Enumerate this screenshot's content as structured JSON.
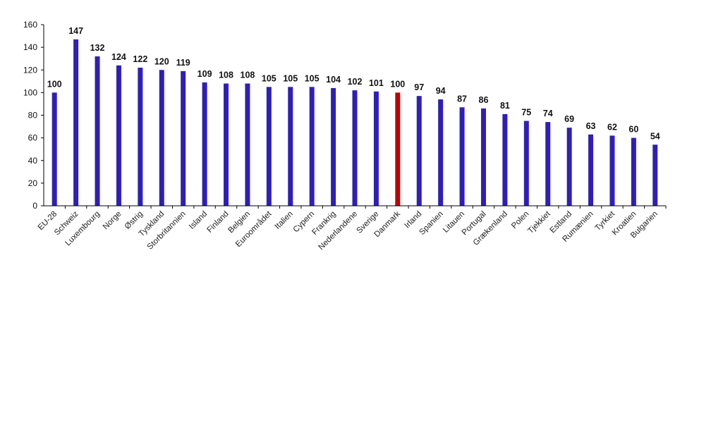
{
  "chart_data": {
    "type": "bar",
    "title": "",
    "xlabel": "",
    "ylabel": "",
    "ylim": [
      0,
      160
    ],
    "yticks": [
      0,
      20,
      40,
      60,
      80,
      100,
      120,
      140,
      160
    ],
    "grid": false,
    "legend": "none",
    "categories": [
      "EU-28",
      "Schweiz",
      "Luxembourg",
      "Norge",
      "Østrig",
      "Tyskland",
      "Storbritannien",
      "Island",
      "Finland",
      "Belgien",
      "Euroområdet",
      "Italien",
      "Cypern",
      "Frankrig",
      "Nederlandene",
      "Sverige",
      "Danmark",
      "Irland",
      "Spanien",
      "Litauen",
      "Portugal",
      "Grækenland",
      "Polen",
      "Tjekkiet",
      "Estland",
      "Rumænien",
      "Tyrkiet",
      "Kroatien",
      "Bulgarien"
    ],
    "values": [
      100,
      147,
      132,
      124,
      122,
      120,
      119,
      109,
      108,
      108,
      105,
      105,
      105,
      104,
      102,
      101,
      100,
      97,
      94,
      87,
      86,
      81,
      75,
      74,
      69,
      63,
      62,
      60,
      54
    ],
    "colors": {
      "bar": "#2f1fb8",
      "highlight": "#c00000",
      "axis": "#000000"
    },
    "highlight_category": "Danmark"
  }
}
